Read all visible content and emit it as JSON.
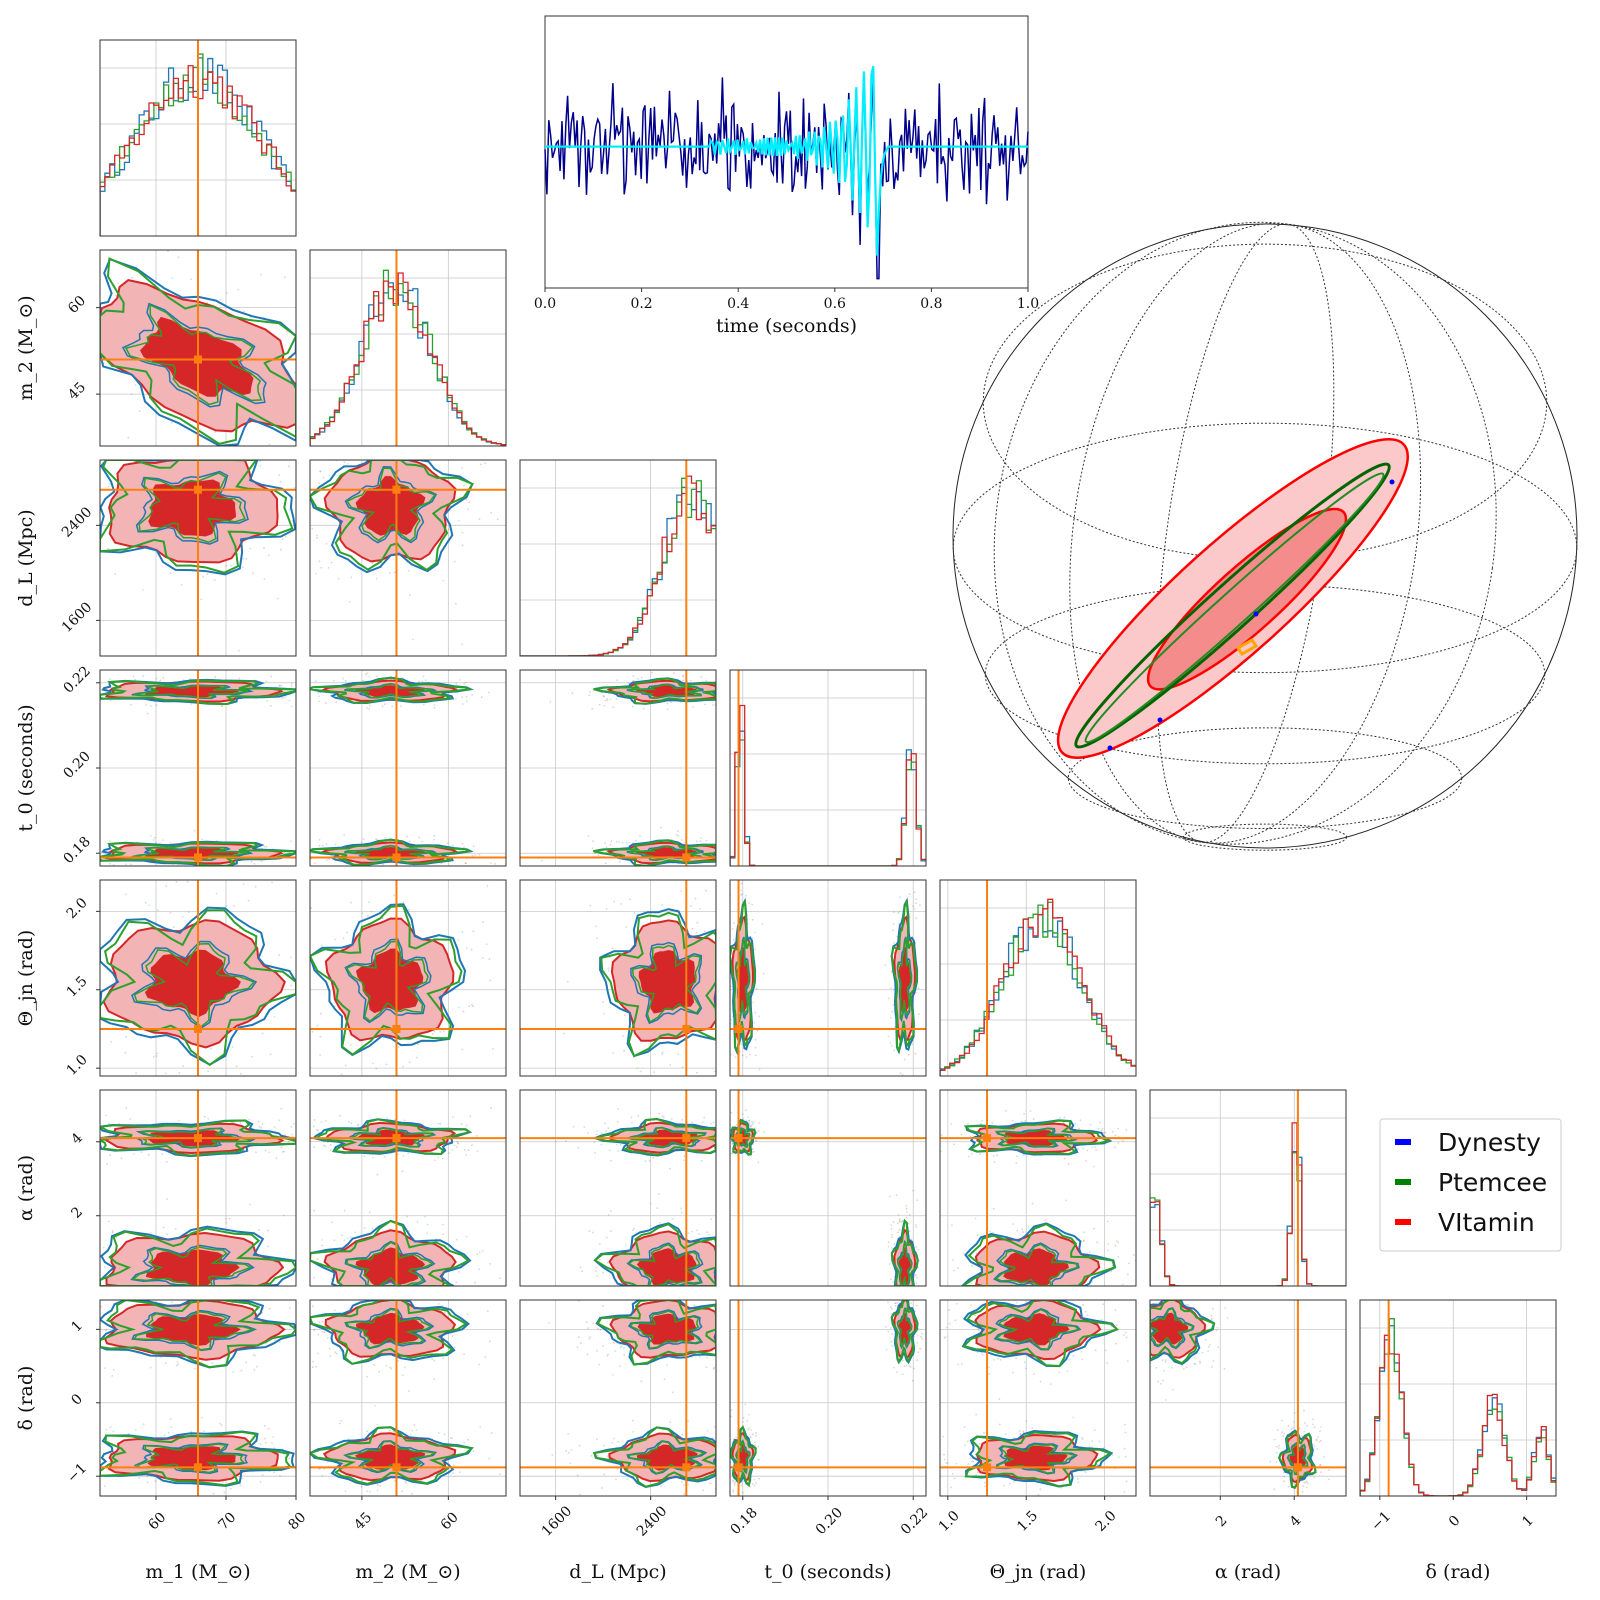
{
  "chart_data": [
    {
      "type": "line",
      "xlabel": "time (seconds)",
      "xlim": [
        0,
        1
      ],
      "x_ticks": [
        "0.0",
        "0.2",
        "0.4",
        "0.6",
        "0.8",
        "1.0"
      ],
      "series": [
        {
          "name": "",
          "color": "#00008b",
          "description_values": {
            "noise_amplitude": 1.0,
            "spike_time": 0.69,
            "spike_min": -2.4
          }
        },
        {
          "name": "",
          "color": "#00eeff",
          "description_values": {
            "chirp_peak_time": 0.69,
            "peak_amplitude": 1.9
          }
        }
      ]
    },
    {
      "type": "scatter",
      "description": "corner plot",
      "parameters": [
        {
          "key": "m1",
          "label": "m_1 (M_⊙)",
          "range": [
            52,
            80
          ],
          "ticks": [
            60,
            70,
            80
          ],
          "tick_labels": [
            "60",
            "70",
            "80"
          ],
          "truth": 66
        },
        {
          "key": "m2",
          "label": "m_2 (M_⊙)",
          "range": [
            36,
            70
          ],
          "ticks": [
            45,
            60
          ],
          "tick_labels": [
            "45",
            "60"
          ],
          "truth": 51
        },
        {
          "key": "dL",
          "label": "d_L (Mpc)",
          "range": [
            1300,
            2950
          ],
          "ticks": [
            1600,
            2400
          ],
          "tick_labels": [
            "1600",
            "2400"
          ],
          "truth": 2700
        },
        {
          "key": "t0",
          "label": "t_0 (seconds)",
          "range": [
            0.177,
            0.223
          ],
          "ticks": [
            0.18,
            0.2,
            0.22
          ],
          "tick_labels": [
            "0.18",
            "0.20",
            "0.22"
          ],
          "truth": 0.179
        },
        {
          "key": "theta",
          "label": "Θ_jn (rad)",
          "range": [
            0.95,
            2.2
          ],
          "ticks": [
            1.0,
            1.5,
            2.0
          ],
          "tick_labels": [
            "1.0",
            "1.5",
            "2.0"
          ],
          "truth": 1.25
        },
        {
          "key": "alpha",
          "label": "α (rad)",
          "range": [
            0.1,
            5.4
          ],
          "ticks": [
            2,
            4
          ],
          "tick_labels": [
            "2",
            "4"
          ],
          "truth": 4.1
        },
        {
          "key": "delta",
          "label": "δ (rad)",
          "range": [
            -1.27,
            1.4
          ],
          "ticks": [
            -1,
            0,
            1
          ],
          "tick_labels": [
            "−1",
            "0",
            "1"
          ],
          "truth": -0.88
        }
      ],
      "series": [
        {
          "name": "Dynesty",
          "color": "#1f77b4",
          "legend_color": "#0000ff"
        },
        {
          "name": "Ptemcee",
          "color": "#2ca02c",
          "legend_color": "#008000"
        },
        {
          "name": "VItamin",
          "color": "#d62728",
          "legend_color": "#ff0000"
        }
      ],
      "truth_color": "#ff7f0e",
      "grid": true,
      "legend": "right"
    },
    {
      "type": "scatter",
      "description": "sky map on sphere",
      "projection": "orthographic",
      "series": [
        {
          "name": "Dynesty",
          "color": "#0000ff"
        },
        {
          "name": "Ptemcee",
          "color": "#006400"
        },
        {
          "name": "VItamin",
          "color": "#ff0000"
        }
      ]
    }
  ],
  "legend": {
    "entries": [
      {
        "label": "Dynesty",
        "color": "#0000ff"
      },
      {
        "label": "Ptemcee",
        "color": "#008000"
      },
      {
        "label": "VItamin",
        "color": "#ff0000"
      }
    ]
  }
}
